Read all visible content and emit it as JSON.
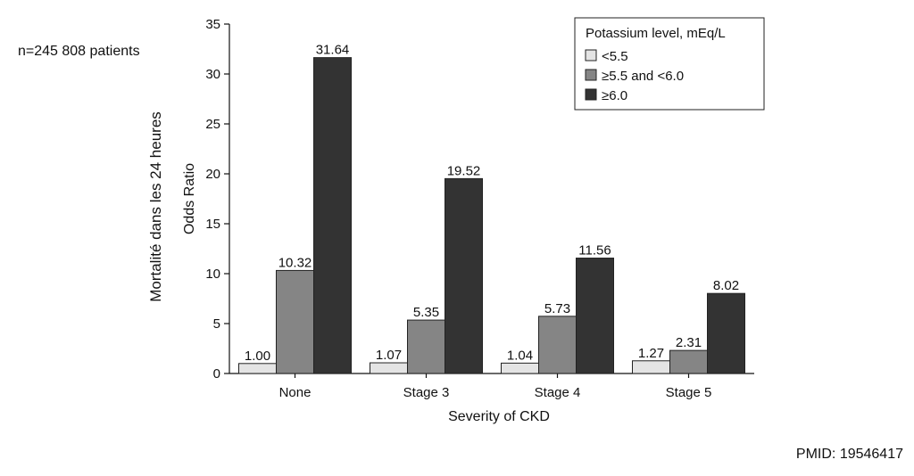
{
  "annotations": {
    "sample_size": "n=245 808 patients",
    "outer_ylabel": "Mortalité dans les 24 heures",
    "pmid": "PMID: 19546417"
  },
  "chart_data": {
    "type": "bar",
    "title": "",
    "xlabel": "Severity of CKD",
    "ylabel": "Odds Ratio",
    "ylim": [
      0,
      35
    ],
    "yticks": [
      0,
      5,
      10,
      15,
      20,
      25,
      30,
      35
    ],
    "grid": false,
    "categories": [
      "None",
      "Stage 3",
      "Stage 4",
      "Stage 5"
    ],
    "legend": {
      "title": "Potassium level, mEq/L",
      "placement": "top-right"
    },
    "series": [
      {
        "name": "<5.5",
        "color": "#e4e4e4",
        "values": [
          1.0,
          1.07,
          1.04,
          1.27
        ],
        "labels": [
          "1.00",
          "1.07",
          "1.04",
          "1.27"
        ]
      },
      {
        "name": "≥5.5 and <6.0",
        "color": "#858585",
        "values": [
          10.32,
          5.35,
          5.73,
          2.31
        ],
        "labels": [
          "10.32",
          "5.35",
          "5.73",
          "2.31"
        ]
      },
      {
        "name": "≥6.0",
        "color": "#333333",
        "values": [
          31.64,
          19.52,
          11.56,
          8.02
        ],
        "labels": [
          "31.64",
          "19.52",
          "11.56",
          "8.02"
        ]
      }
    ]
  }
}
